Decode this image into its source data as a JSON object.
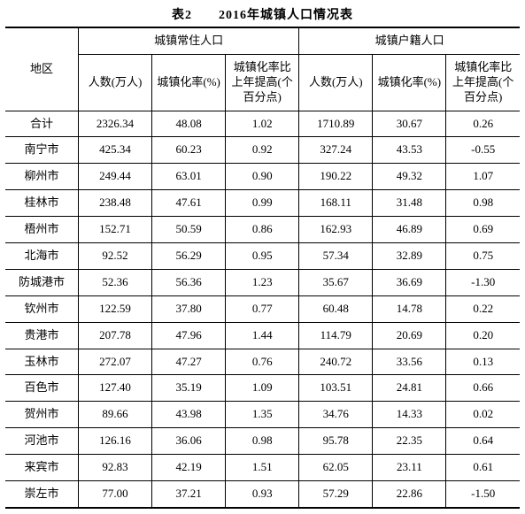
{
  "title": "表2　　2016年城镇人口情况表",
  "header": {
    "region": "地区",
    "group1": "城镇常住人口",
    "group2": "城镇户籍人口",
    "sub": {
      "count": "人数(万人)",
      "rate": "城镇化率(%)",
      "delta": "城镇化率比上年提高(个百分点)"
    }
  },
  "columns": [
    "地区",
    "人数(万人)",
    "城镇化率(%)",
    "城镇化率比上年提高(个百分点)",
    "人数(万人)",
    "城镇化率(%)",
    "城镇化率比上年提高(个百分点)"
  ],
  "rows": [
    {
      "region": "合计",
      "g1_count": "2326.34",
      "g1_rate": "48.08",
      "g1_delta": "1.02",
      "g2_count": "1710.89",
      "g2_rate": "30.67",
      "g2_delta": "0.26"
    },
    {
      "region": "南宁市",
      "g1_count": "425.34",
      "g1_rate": "60.23",
      "g1_delta": "0.92",
      "g2_count": "327.24",
      "g2_rate": "43.53",
      "g2_delta": "-0.55"
    },
    {
      "region": "柳州市",
      "g1_count": "249.44",
      "g1_rate": "63.01",
      "g1_delta": "0.90",
      "g2_count": "190.22",
      "g2_rate": "49.32",
      "g2_delta": "1.07"
    },
    {
      "region": "桂林市",
      "g1_count": "238.48",
      "g1_rate": "47.61",
      "g1_delta": "0.99",
      "g2_count": "168.11",
      "g2_rate": "31.48",
      "g2_delta": "0.98"
    },
    {
      "region": "梧州市",
      "g1_count": "152.71",
      "g1_rate": "50.59",
      "g1_delta": "0.86",
      "g2_count": "162.93",
      "g2_rate": "46.89",
      "g2_delta": "0.69"
    },
    {
      "region": "北海市",
      "g1_count": "92.52",
      "g1_rate": "56.29",
      "g1_delta": "0.95",
      "g2_count": "57.34",
      "g2_rate": "32.89",
      "g2_delta": "0.75"
    },
    {
      "region": "防城港市",
      "g1_count": "52.36",
      "g1_rate": "56.36",
      "g1_delta": "1.23",
      "g2_count": "35.67",
      "g2_rate": "36.69",
      "g2_delta": "-1.30"
    },
    {
      "region": "钦州市",
      "g1_count": "122.59",
      "g1_rate": "37.80",
      "g1_delta": "0.77",
      "g2_count": "60.48",
      "g2_rate": "14.78",
      "g2_delta": "0.22"
    },
    {
      "region": "贵港市",
      "g1_count": "207.78",
      "g1_rate": "47.96",
      "g1_delta": "1.44",
      "g2_count": "114.79",
      "g2_rate": "20.69",
      "g2_delta": "0.20"
    },
    {
      "region": "玉林市",
      "g1_count": "272.07",
      "g1_rate": "47.27",
      "g1_delta": "0.76",
      "g2_count": "240.72",
      "g2_rate": "33.56",
      "g2_delta": "0.13"
    },
    {
      "region": "百色市",
      "g1_count": "127.40",
      "g1_rate": "35.19",
      "g1_delta": "1.09",
      "g2_count": "103.51",
      "g2_rate": "24.81",
      "g2_delta": "0.66"
    },
    {
      "region": "贺州市",
      "g1_count": "89.66",
      "g1_rate": "43.98",
      "g1_delta": "1.35",
      "g2_count": "34.76",
      "g2_rate": "14.33",
      "g2_delta": "0.02"
    },
    {
      "region": "河池市",
      "g1_count": "126.16",
      "g1_rate": "36.06",
      "g1_delta": "0.98",
      "g2_count": "95.78",
      "g2_rate": "22.35",
      "g2_delta": "0.64"
    },
    {
      "region": "来宾市",
      "g1_count": "92.83",
      "g1_rate": "42.19",
      "g1_delta": "1.51",
      "g2_count": "62.05",
      "g2_rate": "23.11",
      "g2_delta": "0.61"
    },
    {
      "region": "崇左市",
      "g1_count": "77.00",
      "g1_rate": "37.21",
      "g1_delta": "0.93",
      "g2_count": "57.29",
      "g2_rate": "22.86",
      "g2_delta": "-1.50"
    }
  ],
  "style": {
    "background_color": "#ffffff",
    "text_color": "#000000",
    "border_color": "#000000",
    "title_fontsize": 14,
    "cell_fontsize": 13,
    "font_family": "SimSun"
  }
}
